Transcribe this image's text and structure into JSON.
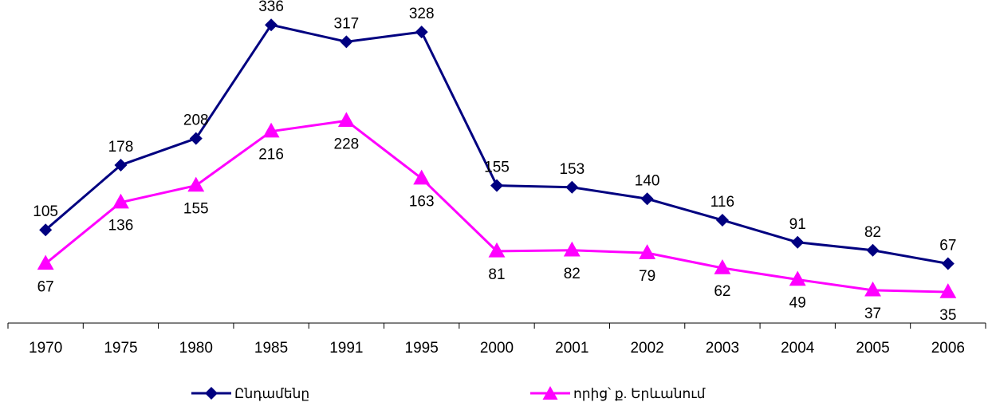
{
  "chart_data": {
    "type": "line",
    "categories": [
      "1970",
      "1975",
      "1980",
      "1985",
      "1991",
      "1995",
      "2000",
      "2001",
      "2002",
      "2003",
      "2004",
      "2005",
      "2006"
    ],
    "series": [
      {
        "name": "Ընդամենը",
        "values": [
          105,
          178,
          208,
          336,
          317,
          328,
          155,
          153,
          140,
          116,
          91,
          82,
          67
        ],
        "color": "#000080",
        "marker": "diamond",
        "labels": "above"
      },
      {
        "name": "որից՝ ք. Երևանում",
        "values": [
          67,
          136,
          155,
          216,
          228,
          163,
          81,
          82,
          79,
          62,
          49,
          37,
          35
        ],
        "color": "#FF00FF",
        "marker": "triangle",
        "labels": "below"
      }
    ],
    "ylim": [
      0,
      355
    ],
    "grid": false,
    "legend": "bottom",
    "title": "",
    "xlabel": "",
    "ylabel": ""
  }
}
